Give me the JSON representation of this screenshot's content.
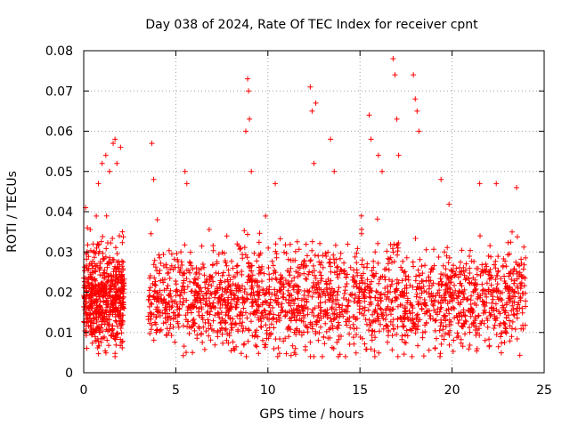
{
  "chart_data": {
    "type": "scatter",
    "title": "Day 038 of 2024, Rate Of TEC Index for receiver cpnt",
    "xlabel": "GPS time / hours",
    "ylabel": "ROTI / TECUs",
    "xlim": [
      0,
      25
    ],
    "ylim": [
      0,
      0.08
    ],
    "x_ticks": [
      0,
      5,
      10,
      15,
      20,
      25
    ],
    "x_tick_labels": [
      "0",
      "5",
      "10",
      "15",
      "20",
      "25"
    ],
    "y_ticks": [
      0,
      0.01,
      0.02,
      0.03,
      0.04,
      0.05,
      0.06,
      0.07,
      0.08
    ],
    "y_tick_labels": [
      "0",
      "0.01",
      "0.02",
      "0.03",
      "0.04",
      "0.05",
      "0.06",
      "0.07",
      "0.08"
    ],
    "grid": true,
    "marker": "+",
    "color": "#ff0000",
    "series": [
      {
        "name": "ROTI",
        "x": [
          0.1,
          0.2,
          0.8,
          1.0,
          1.2,
          1.4,
          1.6,
          1.7,
          1.8,
          2.0,
          2.1,
          3.7,
          3.8,
          4.0,
          5.5,
          5.6,
          8.8,
          8.9,
          8.95,
          9.0,
          9.1,
          10.4,
          12.3,
          12.4,
          12.5,
          12.6,
          13.4,
          13.6,
          15.5,
          15.6,
          16.0,
          16.2,
          16.8,
          16.9,
          17.0,
          17.1,
          17.9,
          18.0,
          18.1,
          18.2,
          19.4,
          21.5,
          22.4,
          23.5
        ],
        "y": [
          0.041,
          0.036,
          0.047,
          0.052,
          0.054,
          0.05,
          0.057,
          0.058,
          0.052,
          0.056,
          0.035,
          0.057,
          0.048,
          0.038,
          0.05,
          0.047,
          0.06,
          0.073,
          0.07,
          0.063,
          0.05,
          0.047,
          0.071,
          0.065,
          0.052,
          0.067,
          0.058,
          0.05,
          0.064,
          0.058,
          0.054,
          0.05,
          0.078,
          0.074,
          0.063,
          0.054,
          0.074,
          0.068,
          0.065,
          0.06,
          0.048,
          0.047,
          0.047,
          0.046
        ]
      }
    ]
  }
}
